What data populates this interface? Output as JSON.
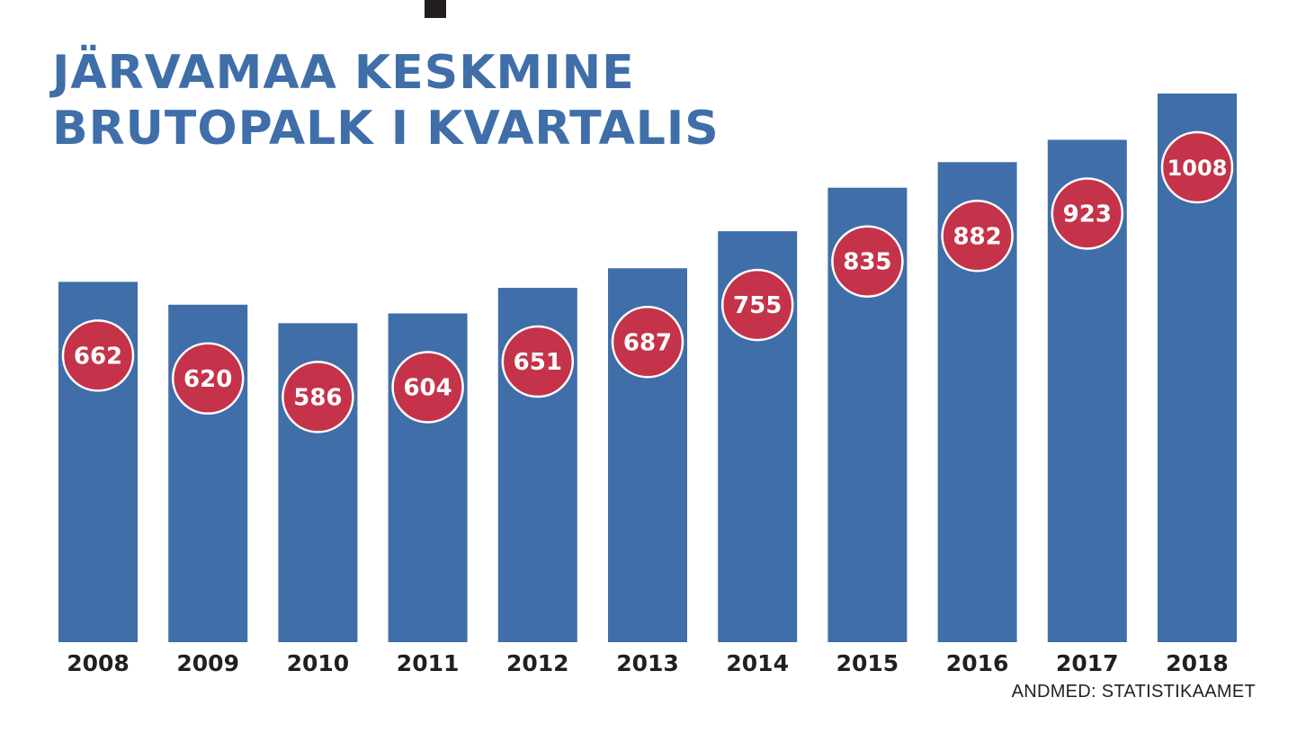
{
  "title": {
    "line1": "JÄRVAMAA KESKMINE",
    "line2": "BRUTOPALK I KVARTALIS"
  },
  "source": "ANDMED: STATISTIKAAMET",
  "colors": {
    "bar": "#3f6ea9",
    "badge": "#c4334a",
    "title": "#3f6ea9",
    "text": "#231f20"
  },
  "chart_data": {
    "type": "bar",
    "categories": [
      "2008",
      "2009",
      "2010",
      "2011",
      "2012",
      "2013",
      "2014",
      "2015",
      "2016",
      "2017",
      "2018"
    ],
    "values": [
      662,
      620,
      586,
      604,
      651,
      687,
      755,
      835,
      882,
      923,
      1008
    ],
    "value_labels": [
      "662",
      "620",
      "586",
      "604",
      "651",
      "687",
      "755",
      "835",
      "882",
      "923",
      "1008"
    ],
    "title": "JÄRVAMAA KESKMINE BRUTOPALK I KVARTALIS",
    "xlabel": "",
    "ylabel": "",
    "ylim": [
      0,
      1008
    ],
    "grid": false,
    "legend": "none"
  }
}
